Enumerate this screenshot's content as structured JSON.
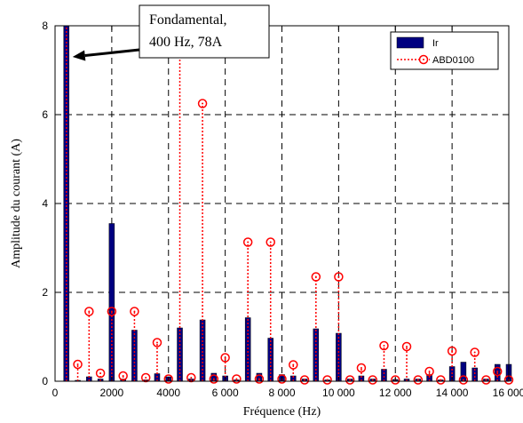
{
  "chart_data": {
    "type": "bar",
    "xlabel": "Fréquence (Hz)",
    "ylabel": "Amplitude du courant (A)",
    "xlim": [
      0,
      16000
    ],
    "ylim": [
      0,
      8
    ],
    "xticks": [
      0,
      2000,
      4000,
      6000,
      8000,
      10000,
      12000,
      14000,
      16000
    ],
    "xtick_labels": [
      "0",
      "2000",
      "4000",
      "6 000",
      "8 000",
      "10 000",
      "12 000",
      "14 000",
      "16 000"
    ],
    "yticks": [
      0,
      2,
      4,
      6,
      8
    ],
    "ytick_labels": [
      "0",
      "2",
      "4",
      "6",
      "8"
    ],
    "grid": true,
    "legend_position": "top-right",
    "series": [
      {
        "name": "Ir",
        "kind": "bar",
        "color": "#000080",
        "points": [
          {
            "x": 400,
            "y": 8.0
          },
          {
            "x": 800,
            "y": 0.02
          },
          {
            "x": 1200,
            "y": 0.1
          },
          {
            "x": 1600,
            "y": 0.05
          },
          {
            "x": 2000,
            "y": 3.55
          },
          {
            "x": 2400,
            "y": 0.05
          },
          {
            "x": 2800,
            "y": 1.15
          },
          {
            "x": 3200,
            "y": 0.03
          },
          {
            "x": 3600,
            "y": 0.17
          },
          {
            "x": 4000,
            "y": 0.1
          },
          {
            "x": 4400,
            "y": 1.2
          },
          {
            "x": 4800,
            "y": 0.05
          },
          {
            "x": 5200,
            "y": 1.38
          },
          {
            "x": 5600,
            "y": 0.18
          },
          {
            "x": 6000,
            "y": 0.12
          },
          {
            "x": 6400,
            "y": 0.03
          },
          {
            "x": 6800,
            "y": 1.43
          },
          {
            "x": 7200,
            "y": 0.18
          },
          {
            "x": 7600,
            "y": 0.97
          },
          {
            "x": 8000,
            "y": 0.15
          },
          {
            "x": 8400,
            "y": 0.12
          },
          {
            "x": 8800,
            "y": 0.05
          },
          {
            "x": 9200,
            "y": 1.18
          },
          {
            "x": 9600,
            "y": 0.03
          },
          {
            "x": 10000,
            "y": 1.08
          },
          {
            "x": 10400,
            "y": 0.05
          },
          {
            "x": 10800,
            "y": 0.12
          },
          {
            "x": 11200,
            "y": 0.05
          },
          {
            "x": 11600,
            "y": 0.27
          },
          {
            "x": 12000,
            "y": 0.04
          },
          {
            "x": 12400,
            "y": 0.05
          },
          {
            "x": 12800,
            "y": 0.05
          },
          {
            "x": 13200,
            "y": 0.15
          },
          {
            "x": 13600,
            "y": 0.03
          },
          {
            "x": 14000,
            "y": 0.33
          },
          {
            "x": 14400,
            "y": 0.43
          },
          {
            "x": 14800,
            "y": 0.3
          },
          {
            "x": 15200,
            "y": 0.05
          },
          {
            "x": 15600,
            "y": 0.38
          },
          {
            "x": 16000,
            "y": 0.38
          }
        ]
      },
      {
        "name": "ABD0100",
        "kind": "stem",
        "color": "#ff0000",
        "points": [
          {
            "x": 400,
            "y": 8.0
          },
          {
            "x": 800,
            "y": 0.38
          },
          {
            "x": 1200,
            "y": 1.57
          },
          {
            "x": 1600,
            "y": 0.18
          },
          {
            "x": 2000,
            "y": 1.57
          },
          {
            "x": 2400,
            "y": 0.12
          },
          {
            "x": 2800,
            "y": 1.57
          },
          {
            "x": 3200,
            "y": 0.08
          },
          {
            "x": 3600,
            "y": 0.87
          },
          {
            "x": 4000,
            "y": 0.05
          },
          {
            "x": 4400,
            "y": 8.0
          },
          {
            "x": 4800,
            "y": 0.08
          },
          {
            "x": 5200,
            "y": 6.25
          },
          {
            "x": 5600,
            "y": 0.05
          },
          {
            "x": 6000,
            "y": 0.53
          },
          {
            "x": 6400,
            "y": 0.05
          },
          {
            "x": 6800,
            "y": 3.13
          },
          {
            "x": 7200,
            "y": 0.05
          },
          {
            "x": 7600,
            "y": 3.13
          },
          {
            "x": 8000,
            "y": 0.05
          },
          {
            "x": 8400,
            "y": 0.37
          },
          {
            "x": 8800,
            "y": 0.03
          },
          {
            "x": 9200,
            "y": 2.35
          },
          {
            "x": 9600,
            "y": 0.03
          },
          {
            "x": 10000,
            "y": 2.35
          },
          {
            "x": 10400,
            "y": 0.03
          },
          {
            "x": 10800,
            "y": 0.3
          },
          {
            "x": 11200,
            "y": 0.03
          },
          {
            "x": 11600,
            "y": 0.8
          },
          {
            "x": 12000,
            "y": 0.03
          },
          {
            "x": 12400,
            "y": 0.78
          },
          {
            "x": 12800,
            "y": 0.03
          },
          {
            "x": 13200,
            "y": 0.22
          },
          {
            "x": 13600,
            "y": 0.03
          },
          {
            "x": 14000,
            "y": 0.68
          },
          {
            "x": 14400,
            "y": 0.03
          },
          {
            "x": 14800,
            "y": 0.65
          },
          {
            "x": 15200,
            "y": 0.03
          },
          {
            "x": 15600,
            "y": 0.22
          },
          {
            "x": 16000,
            "y": 0.03
          }
        ]
      }
    ],
    "annotation": {
      "lines": [
        "Fondamental,",
        "400 Hz, 78A"
      ],
      "points_to": {
        "x": 400,
        "y": 7.3
      }
    }
  }
}
